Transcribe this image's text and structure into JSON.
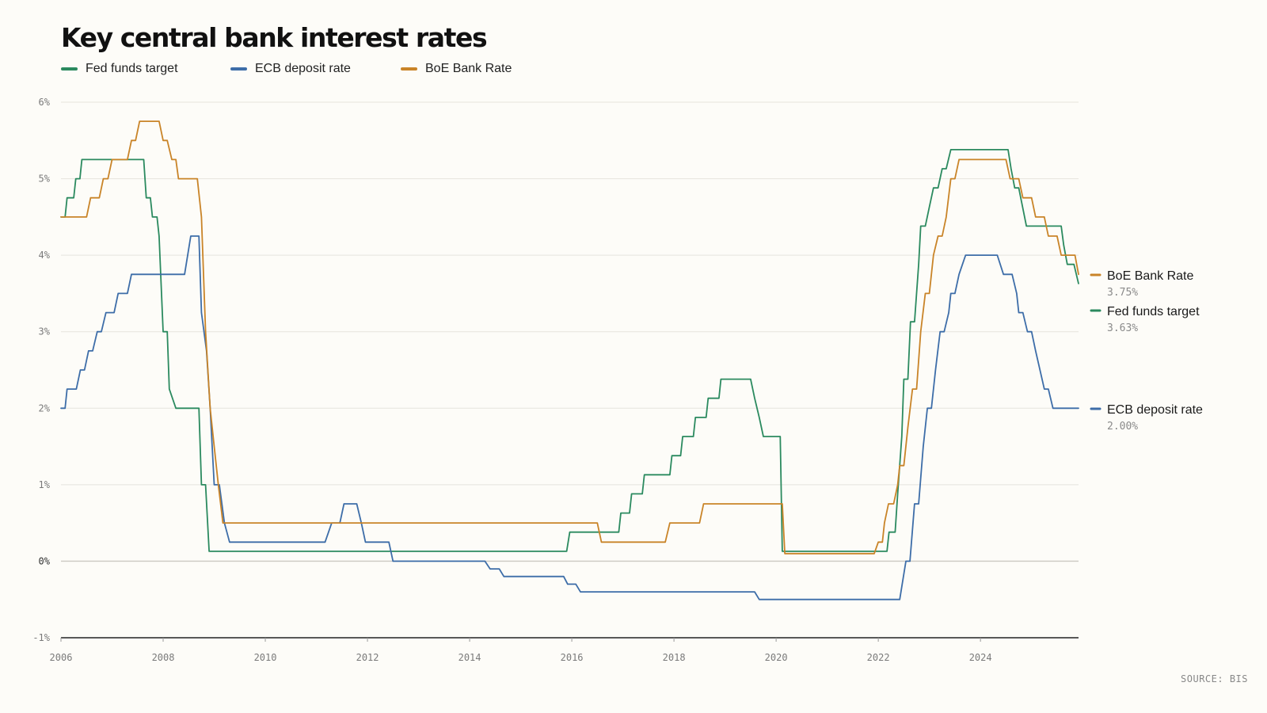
{
  "title": "Key central bank interest rates",
  "source": "SOURCE: BIS",
  "colors": {
    "fed": "#2b8a5f",
    "ecb": "#3d6da8",
    "boe": "#c98428",
    "grid": "#e6e4dd",
    "baseline": "#222222",
    "zero_line": "#cfcdc6"
  },
  "legend": [
    {
      "name": "Fed funds target",
      "color": "#2b8a5f"
    },
    {
      "name": "ECB deposit rate",
      "color": "#3d6da8"
    },
    {
      "name": "BoE Bank Rate",
      "color": "#c98428"
    }
  ],
  "end_labels": [
    {
      "name": "BoE Bank Rate",
      "value": "3.75%",
      "color": "#c98428"
    },
    {
      "name": "Fed funds target",
      "value": "3.63%",
      "color": "#2b8a5f"
    },
    {
      "name": "ECB deposit rate",
      "value": "2.00%",
      "color": "#3d6da8"
    }
  ],
  "chart_data": {
    "type": "line",
    "xlabel": "",
    "ylabel": "",
    "xlim": [
      2006.0,
      2025.92
    ],
    "ylim": [
      -1,
      6
    ],
    "y_ticks": [
      {
        "value": 6,
        "label": "6%"
      },
      {
        "value": 5,
        "label": "5%"
      },
      {
        "value": 4,
        "label": "4%"
      },
      {
        "value": 3,
        "label": "3%"
      },
      {
        "value": 2,
        "label": "2%"
      },
      {
        "value": 1,
        "label": "1%"
      },
      {
        "value": 0,
        "label": "0%"
      },
      {
        "value": -1,
        "label": "-1%"
      }
    ],
    "x_ticks": [
      {
        "value": 2006,
        "label": "2006"
      },
      {
        "value": 2008,
        "label": "2008"
      },
      {
        "value": 2010,
        "label": "2010"
      },
      {
        "value": 2012,
        "label": "2012"
      },
      {
        "value": 2014,
        "label": "2014"
      },
      {
        "value": 2016,
        "label": "2016"
      },
      {
        "value": 2018,
        "label": "2018"
      },
      {
        "value": 2020,
        "label": "2020"
      },
      {
        "value": 2022,
        "label": "2022"
      },
      {
        "value": 2024,
        "label": "2024"
      }
    ],
    "grid": true,
    "legend_position": "top-left",
    "series": [
      {
        "name": "Fed funds target",
        "color": "#2b8a5f",
        "points": [
          [
            2006.0,
            4.5
          ],
          [
            2006.08,
            4.5
          ],
          [
            2006.12,
            4.75
          ],
          [
            2006.25,
            4.75
          ],
          [
            2006.29,
            5.0
          ],
          [
            2006.37,
            5.0
          ],
          [
            2006.41,
            5.25
          ],
          [
            2007.62,
            5.25
          ],
          [
            2007.67,
            4.75
          ],
          [
            2007.75,
            4.75
          ],
          [
            2007.79,
            4.5
          ],
          [
            2007.88,
            4.5
          ],
          [
            2007.92,
            4.25
          ],
          [
            2008.0,
            3.0
          ],
          [
            2008.08,
            3.0
          ],
          [
            2008.12,
            2.25
          ],
          [
            2008.25,
            2.0
          ],
          [
            2008.7,
            2.0
          ],
          [
            2008.75,
            1.0
          ],
          [
            2008.83,
            1.0
          ],
          [
            2008.9,
            0.13
          ],
          [
            2015.9,
            0.13
          ],
          [
            2015.96,
            0.38
          ],
          [
            2016.92,
            0.38
          ],
          [
            2016.96,
            0.63
          ],
          [
            2017.13,
            0.63
          ],
          [
            2017.17,
            0.88
          ],
          [
            2017.38,
            0.88
          ],
          [
            2017.42,
            1.13
          ],
          [
            2017.92,
            1.13
          ],
          [
            2017.96,
            1.38
          ],
          [
            2018.13,
            1.38
          ],
          [
            2018.17,
            1.63
          ],
          [
            2018.38,
            1.63
          ],
          [
            2018.42,
            1.88
          ],
          [
            2018.63,
            1.88
          ],
          [
            2018.67,
            2.13
          ],
          [
            2018.88,
            2.13
          ],
          [
            2018.92,
            2.38
          ],
          [
            2019.5,
            2.38
          ],
          [
            2019.58,
            2.13
          ],
          [
            2019.67,
            1.88
          ],
          [
            2019.75,
            1.63
          ],
          [
            2020.08,
            1.63
          ],
          [
            2020.12,
            0.13
          ],
          [
            2022.17,
            0.13
          ],
          [
            2022.21,
            0.38
          ],
          [
            2022.33,
            0.38
          ],
          [
            2022.38,
            0.88
          ],
          [
            2022.46,
            1.63
          ],
          [
            2022.5,
            2.38
          ],
          [
            2022.58,
            2.38
          ],
          [
            2022.63,
            3.13
          ],
          [
            2022.71,
            3.13
          ],
          [
            2022.79,
            3.88
          ],
          [
            2022.83,
            4.38
          ],
          [
            2022.92,
            4.38
          ],
          [
            2023.0,
            4.63
          ],
          [
            2023.08,
            4.88
          ],
          [
            2023.17,
            4.88
          ],
          [
            2023.25,
            5.13
          ],
          [
            2023.33,
            5.13
          ],
          [
            2023.42,
            5.38
          ],
          [
            2024.54,
            5.38
          ],
          [
            2024.6,
            5.13
          ],
          [
            2024.67,
            4.88
          ],
          [
            2024.75,
            4.88
          ],
          [
            2024.9,
            4.38
          ],
          [
            2025.58,
            4.38
          ],
          [
            2025.63,
            4.13
          ],
          [
            2025.7,
            3.88
          ],
          [
            2025.83,
            3.88
          ],
          [
            2025.92,
            3.63
          ]
        ]
      },
      {
        "name": "ECB deposit rate",
        "color": "#3d6da8",
        "points": [
          [
            2006.0,
            2.0
          ],
          [
            2006.08,
            2.0
          ],
          [
            2006.12,
            2.25
          ],
          [
            2006.3,
            2.25
          ],
          [
            2006.38,
            2.5
          ],
          [
            2006.46,
            2.5
          ],
          [
            2006.54,
            2.75
          ],
          [
            2006.62,
            2.75
          ],
          [
            2006.71,
            3.0
          ],
          [
            2006.79,
            3.0
          ],
          [
            2006.88,
            3.25
          ],
          [
            2007.04,
            3.25
          ],
          [
            2007.12,
            3.5
          ],
          [
            2007.3,
            3.5
          ],
          [
            2007.38,
            3.75
          ],
          [
            2008.42,
            3.75
          ],
          [
            2008.54,
            4.25
          ],
          [
            2008.7,
            4.25
          ],
          [
            2008.75,
            3.25
          ],
          [
            2008.85,
            2.75
          ],
          [
            2008.92,
            2.0
          ],
          [
            2009.0,
            1.0
          ],
          [
            2009.1,
            1.0
          ],
          [
            2009.2,
            0.5
          ],
          [
            2009.3,
            0.25
          ],
          [
            2011.17,
            0.25
          ],
          [
            2011.3,
            0.5
          ],
          [
            2011.46,
            0.5
          ],
          [
            2011.54,
            0.75
          ],
          [
            2011.79,
            0.75
          ],
          [
            2011.88,
            0.5
          ],
          [
            2011.96,
            0.25
          ],
          [
            2012.42,
            0.25
          ],
          [
            2012.5,
            0.0
          ],
          [
            2014.3,
            0.0
          ],
          [
            2014.4,
            -0.1
          ],
          [
            2014.58,
            -0.1
          ],
          [
            2014.67,
            -0.2
          ],
          [
            2015.84,
            -0.2
          ],
          [
            2015.92,
            -0.3
          ],
          [
            2016.08,
            -0.3
          ],
          [
            2016.17,
            -0.4
          ],
          [
            2019.58,
            -0.4
          ],
          [
            2019.67,
            -0.5
          ],
          [
            2022.42,
            -0.5
          ],
          [
            2022.54,
            0.0
          ],
          [
            2022.62,
            0.0
          ],
          [
            2022.71,
            0.75
          ],
          [
            2022.79,
            0.75
          ],
          [
            2022.88,
            1.5
          ],
          [
            2022.96,
            2.0
          ],
          [
            2023.04,
            2.0
          ],
          [
            2023.12,
            2.5
          ],
          [
            2023.21,
            3.0
          ],
          [
            2023.29,
            3.0
          ],
          [
            2023.38,
            3.25
          ],
          [
            2023.42,
            3.5
          ],
          [
            2023.5,
            3.5
          ],
          [
            2023.58,
            3.75
          ],
          [
            2023.71,
            4.0
          ],
          [
            2024.33,
            4.0
          ],
          [
            2024.45,
            3.75
          ],
          [
            2024.62,
            3.75
          ],
          [
            2024.71,
            3.5
          ],
          [
            2024.75,
            3.25
          ],
          [
            2024.83,
            3.25
          ],
          [
            2024.92,
            3.0
          ],
          [
            2025.0,
            3.0
          ],
          [
            2025.08,
            2.75
          ],
          [
            2025.25,
            2.25
          ],
          [
            2025.33,
            2.25
          ],
          [
            2025.42,
            2.0
          ],
          [
            2025.92,
            2.0
          ]
        ]
      },
      {
        "name": "BoE Bank Rate",
        "color": "#c98428",
        "points": [
          [
            2006.0,
            4.5
          ],
          [
            2006.5,
            4.5
          ],
          [
            2006.58,
            4.75
          ],
          [
            2006.75,
            4.75
          ],
          [
            2006.83,
            5.0
          ],
          [
            2006.92,
            5.0
          ],
          [
            2007.0,
            5.25
          ],
          [
            2007.3,
            5.25
          ],
          [
            2007.38,
            5.5
          ],
          [
            2007.46,
            5.5
          ],
          [
            2007.54,
            5.75
          ],
          [
            2007.92,
            5.75
          ],
          [
            2008.0,
            5.5
          ],
          [
            2008.08,
            5.5
          ],
          [
            2008.17,
            5.25
          ],
          [
            2008.25,
            5.25
          ],
          [
            2008.3,
            5.0
          ],
          [
            2008.67,
            5.0
          ],
          [
            2008.75,
            4.5
          ],
          [
            2008.83,
            3.0
          ],
          [
            2008.92,
            2.0
          ],
          [
            2009.0,
            1.5
          ],
          [
            2009.08,
            1.0
          ],
          [
            2009.17,
            0.5
          ],
          [
            2016.5,
            0.5
          ],
          [
            2016.58,
            0.25
          ],
          [
            2017.83,
            0.25
          ],
          [
            2017.92,
            0.5
          ],
          [
            2018.5,
            0.5
          ],
          [
            2018.58,
            0.75
          ],
          [
            2020.12,
            0.75
          ],
          [
            2020.17,
            0.1
          ],
          [
            2021.92,
            0.1
          ],
          [
            2022.0,
            0.25
          ],
          [
            2022.08,
            0.25
          ],
          [
            2022.12,
            0.5
          ],
          [
            2022.2,
            0.75
          ],
          [
            2022.3,
            0.75
          ],
          [
            2022.38,
            1.0
          ],
          [
            2022.42,
            1.25
          ],
          [
            2022.5,
            1.25
          ],
          [
            2022.58,
            1.75
          ],
          [
            2022.67,
            2.25
          ],
          [
            2022.75,
            2.25
          ],
          [
            2022.83,
            3.0
          ],
          [
            2022.92,
            3.5
          ],
          [
            2023.0,
            3.5
          ],
          [
            2023.08,
            4.0
          ],
          [
            2023.17,
            4.25
          ],
          [
            2023.25,
            4.25
          ],
          [
            2023.33,
            4.5
          ],
          [
            2023.42,
            5.0
          ],
          [
            2023.5,
            5.0
          ],
          [
            2023.58,
            5.25
          ],
          [
            2024.5,
            5.25
          ],
          [
            2024.58,
            5.0
          ],
          [
            2024.75,
            5.0
          ],
          [
            2024.83,
            4.75
          ],
          [
            2025.0,
            4.75
          ],
          [
            2025.08,
            4.5
          ],
          [
            2025.25,
            4.5
          ],
          [
            2025.33,
            4.25
          ],
          [
            2025.5,
            4.25
          ],
          [
            2025.58,
            4.0
          ],
          [
            2025.85,
            4.0
          ],
          [
            2025.92,
            3.75
          ]
        ]
      }
    ]
  }
}
